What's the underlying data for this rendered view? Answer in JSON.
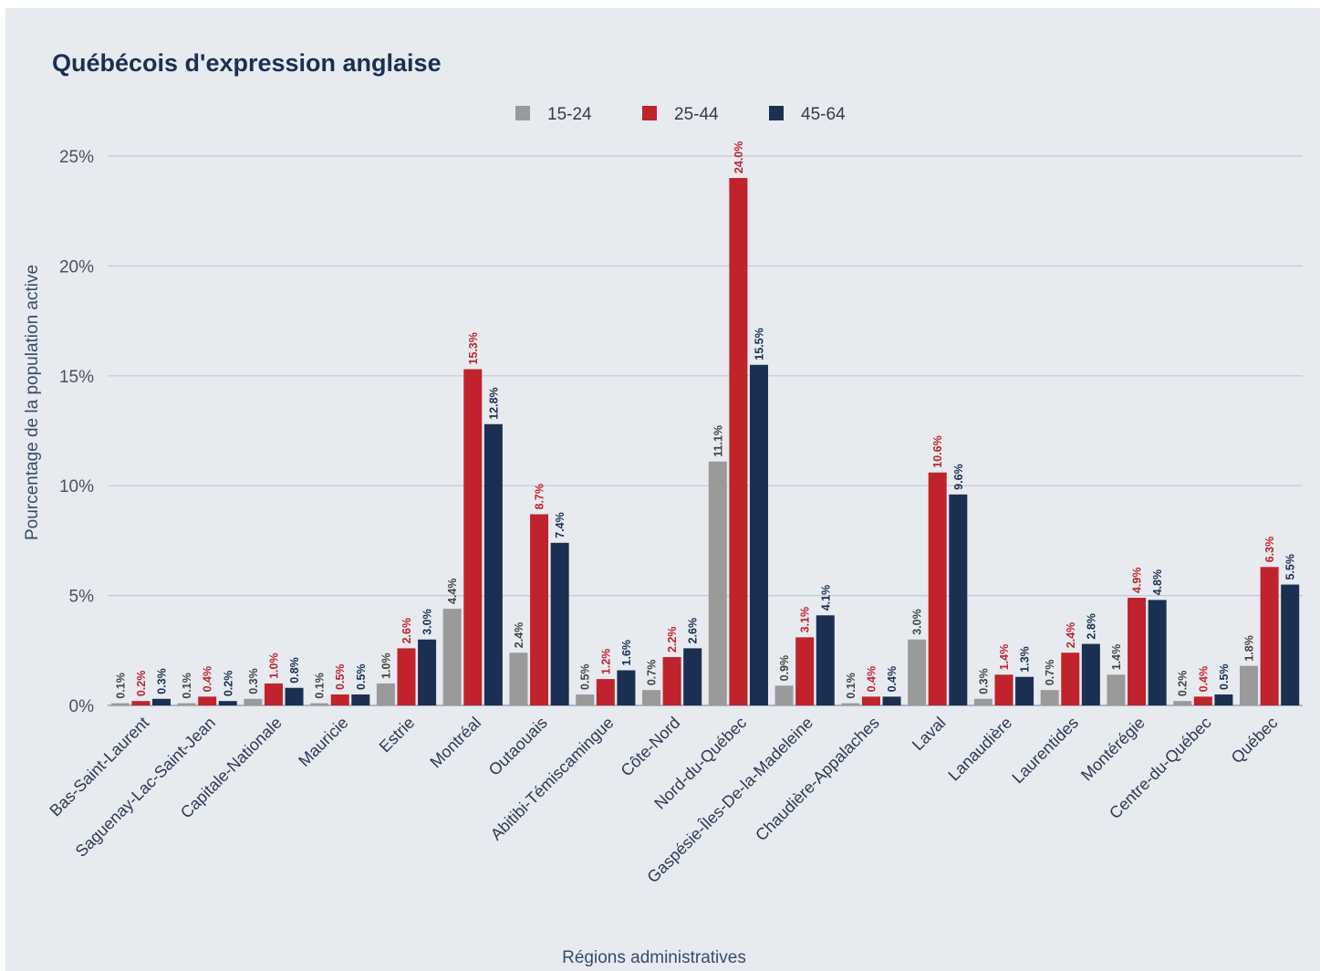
{
  "chart_data": {
    "type": "bar",
    "title": "Québécois d'expression anglaise",
    "xlabel": "Régions administratives",
    "ylabel": "Pourcentage de la population active",
    "ylim": [
      0,
      25
    ],
    "yticks": [
      "0%",
      "5%",
      "10%",
      "15%",
      "20%",
      "25%"
    ],
    "legend_position": "top-center",
    "grid": true,
    "categories": [
      "Bas-Saint-Laurent",
      "Saguenay-Lac-Saint-Jean",
      "Capitale-Nationale",
      "Mauricie",
      "Estrie",
      "Montréal",
      "Outaouais",
      "Abitibi-Témiscamingue",
      "Côte-Nord",
      "Nord-du-Québec",
      "Gaspésie-Îles-De-la-Madeleine",
      "Chaudière-Appalaches",
      "Laval",
      "Lanaudière",
      "Laurentides",
      "Montérégie",
      "Centre-du-Québec",
      "Québec"
    ],
    "series": [
      {
        "name": "15-24",
        "color": "#9a9a9a",
        "label_color": "#444444",
        "values": [
          0.1,
          0.1,
          0.3,
          0.1,
          1.0,
          4.4,
          2.4,
          0.5,
          0.7,
          11.1,
          0.9,
          0.1,
          3.0,
          0.3,
          0.7,
          1.4,
          0.2,
          1.8
        ],
        "labels": [
          "0.1%",
          "0.1%",
          "0.3%",
          "0.1%",
          "1.0%",
          "4.4%",
          "2.4%",
          "0.5%",
          "0.7%",
          "11.1%",
          "0.9%",
          "0.1%",
          "3.0%",
          "0.3%",
          "0.7%",
          "1.4%",
          "0.2%",
          "1.8%"
        ]
      },
      {
        "name": "25-44",
        "color": "#c0232b",
        "label_color": "#c0232b",
        "values": [
          0.2,
          0.4,
          1.0,
          0.5,
          2.6,
          15.3,
          8.7,
          1.2,
          2.2,
          24.0,
          3.1,
          0.4,
          10.6,
          1.4,
          2.4,
          4.9,
          0.4,
          6.3
        ],
        "labels": [
          "0.2%",
          "0.4%",
          "1.0%",
          "0.5%",
          "2.6%",
          "15.3%",
          "8.7%",
          "1.2%",
          "2.2%",
          "24.0%",
          "3.1%",
          "0.4%",
          "10.6%",
          "1.4%",
          "2.4%",
          "4.9%",
          "0.4%",
          "6.3%"
        ]
      },
      {
        "name": "45-64",
        "color": "#1b2f52",
        "label_color": "#1b2f52",
        "values": [
          0.3,
          0.2,
          0.8,
          0.5,
          3.0,
          12.8,
          7.4,
          1.6,
          2.6,
          15.5,
          4.1,
          0.4,
          9.6,
          1.3,
          2.8,
          4.8,
          0.5,
          5.5
        ],
        "labels": [
          "0.3%",
          "0.2%",
          "0.8%",
          "0.5%",
          "3.0%",
          "12.8%",
          "7.4%",
          "1.6%",
          "2.6%",
          "15.5%",
          "4.1%",
          "0.4%",
          "9.6%",
          "1.3%",
          "2.8%",
          "4.8%",
          "0.5%",
          "5.5%"
        ]
      }
    ]
  }
}
